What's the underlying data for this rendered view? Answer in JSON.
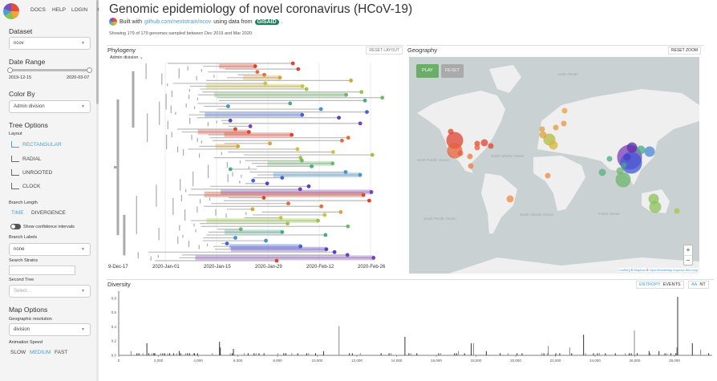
{
  "nav": {
    "docs": "DOCS",
    "help": "HELP",
    "login": "LOGIN"
  },
  "sidebar": {
    "dataset_label": "Dataset",
    "dataset_value": "ncov",
    "date_range_label": "Date Range",
    "date_start": "2019-12-15",
    "date_end": "2020-03-07",
    "color_by_label": "Color By",
    "color_by_value": "Admin division",
    "tree_options_label": "Tree Options",
    "layout_label": "Layout",
    "layouts": [
      "RECTANGULAR",
      "RADIAL",
      "UNROOTED",
      "CLOCK"
    ],
    "selected_layout": "RECTANGULAR",
    "branch_length_label": "Branch Length",
    "branch_time": "TIME",
    "branch_divergence": "DIVERGENCE",
    "confidence_label": "Show confidence intervals",
    "branch_labels_label": "Branch Labels",
    "branch_labels_value": "none",
    "search_label": "Search Strains",
    "search_value": "",
    "second_tree_label": "Second Tree",
    "second_tree_placeholder": "Select...",
    "map_options_label": "Map Options",
    "geo_res_label": "Geographic resolution",
    "geo_res_value": "division",
    "anim_label": "Animation Speed",
    "speeds": [
      "SLOW",
      "MEDIUM",
      "FAST"
    ],
    "selected_speed": "MEDIUM"
  },
  "header": {
    "title": "Genomic epidemiology of novel coronavirus (HCoV-19)",
    "built_with": "Built with",
    "repo_link": "github.com/nextstrain/ncov",
    "using_data": "using data from",
    "gisaid": "GISAID",
    "period": ".",
    "showing": "Showing 179 of 179 genomes sampled between Dec 2019 and Mar 2020."
  },
  "phylogeny": {
    "title": "Phylogeny",
    "reset": "RESET LAYOUT",
    "color_legend": "Admin division",
    "x_ticks": [
      "9-Dec-17",
      "2020-Jan-01",
      "2020-Jan-15",
      "2020-Jan-29",
      "2020-Feb-12",
      "2020-Feb-26"
    ]
  },
  "geography": {
    "title": "Geography",
    "reset_zoom": "RESET ZOOM",
    "play": "PLAY",
    "reset": "RESET",
    "zoom_in": "+",
    "zoom_out": "−",
    "attribution": {
      "leaflet": "Leaflet",
      "sep": " | © ",
      "mapbox": "Mapbox",
      "sep2": " © ",
      "osm": "OpenStreetMap",
      "improve": " Improve this map"
    },
    "ocean_labels": [
      "North Pacific Ocean",
      "North Atlantic Ocean",
      "South Pacific Ocean",
      "South Atlantic Ocean",
      "Indian Ocean",
      "Arctic Ocean"
    ],
    "colors": {
      "water": "#c9d1d3",
      "land": "#efefef"
    }
  },
  "diversity": {
    "title": "Diversity",
    "entropy": "ENTROPY",
    "events": "EVENTS",
    "aa": "AA",
    "nt": "NT",
    "chart_data": {
      "type": "bar",
      "x_ticks": [
        "0",
        "2,000",
        "4,000",
        "6,000",
        "8,000",
        "10,000",
        "12,000",
        "14,000",
        "16,000",
        "18,000",
        "20,000",
        "22,000",
        "24,000",
        "26,000",
        "28,000"
      ],
      "y_ticks": [
        "0.0",
        "0.2",
        "0.4",
        "0.6",
        "0.8"
      ],
      "xlim": [
        0,
        29900
      ],
      "ylim": [
        0,
        0.9
      ],
      "positions": [
        600,
        900,
        1000,
        1200,
        1400,
        1500,
        1650,
        1750,
        1800,
        2100,
        2200,
        2300,
        2450,
        2550,
        2750,
        2900,
        3030,
        3100,
        3350,
        3450,
        3550,
        3750,
        3800,
        3950,
        4700,
        5060,
        5100,
        5600,
        5700,
        5760,
        6300,
        6500,
        6800,
        6900,
        7050,
        7300,
        8000,
        8300,
        8400,
        8700,
        9000,
        9450,
        9550,
        9900,
        10300,
        11080,
        11600,
        11750,
        12150,
        13200,
        13600,
        13700,
        14400,
        14600,
        14700,
        15000,
        16100,
        16200,
        16900,
        17000,
        17100,
        17400,
        17740,
        17860,
        18500,
        19200,
        19600,
        20050,
        20300,
        21300,
        21400,
        21600,
        21620,
        22000,
        22200,
        22700,
        22800,
        23400,
        23500,
        23900,
        24100,
        24200,
        24500,
        25000,
        25500,
        25700,
        25800,
        25960,
        26100,
        26700,
        26750,
        27200,
        27500,
        27600,
        27800,
        28050,
        28100,
        28140,
        28880,
        29300,
        29700
      ],
      "values": [
        0.06,
        0.03,
        0.03,
        0.03,
        0.17,
        0.03,
        0.03,
        0.03,
        0.03,
        0.03,
        0.03,
        0.03,
        0.03,
        0.03,
        0.03,
        0.03,
        0.06,
        0.03,
        0.03,
        0.03,
        0.03,
        0.03,
        0.03,
        0.03,
        0.03,
        0.19,
        0.11,
        0.03,
        0.03,
        0.09,
        0.03,
        0.03,
        0.03,
        0.03,
        0.03,
        0.03,
        0.03,
        0.03,
        0.03,
        0.03,
        0.03,
        0.03,
        0.03,
        0.03,
        0.06,
        0.41,
        0.03,
        0.03,
        0.03,
        0.03,
        0.03,
        0.03,
        0.26,
        0.03,
        0.03,
        0.03,
        0.03,
        0.03,
        0.03,
        0.03,
        0.06,
        0.03,
        0.17,
        0.17,
        0.06,
        0.03,
        0.03,
        0.03,
        0.03,
        0.03,
        0.03,
        0.03,
        0.13,
        0.03,
        0.03,
        0.11,
        0.03,
        0.29,
        0.03,
        0.03,
        0.03,
        0.03,
        0.03,
        0.03,
        0.03,
        0.03,
        0.03,
        0.35,
        0.03,
        0.06,
        0.03,
        0.06,
        0.03,
        0.03,
        0.03,
        0.03,
        0.11,
        0.82,
        0.17,
        0.08,
        0.03
      ]
    }
  }
}
